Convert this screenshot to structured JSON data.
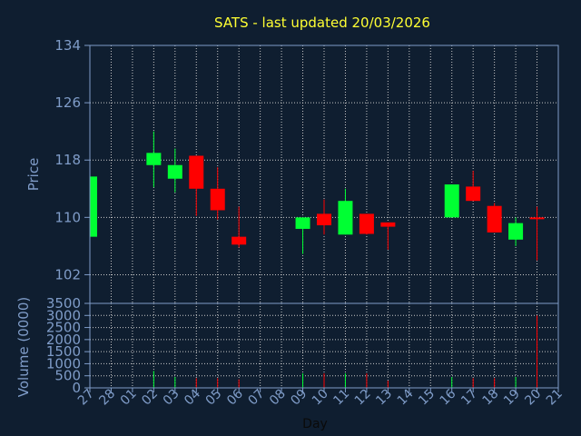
{
  "chart_data": {
    "type": "candlestick",
    "title": "SATS - last updated 20/03/2026",
    "colors": {
      "background": "#0f1e30",
      "axis": "#7f9cc8",
      "grid": "#c8c8c8",
      "title": "#ffff33",
      "up": "#00ff33",
      "down": "#ff0000"
    },
    "price_panel": {
      "ylabel": "Price",
      "ylim": [
        98,
        134
      ],
      "yticks": [
        102,
        110,
        118,
        126,
        134
      ]
    },
    "volume_panel": {
      "ylabel": "Volume (0000)",
      "ylim": [
        0,
        3500
      ],
      "yticks": [
        0,
        500,
        1000,
        1500,
        2000,
        2500,
        3000,
        3500
      ]
    },
    "xlabel": "Day",
    "x_ticks": [
      "27",
      "28",
      "01",
      "02",
      "03",
      "04",
      "05",
      "06",
      "07",
      "08",
      "09",
      "10",
      "11",
      "12",
      "13",
      "14",
      "15",
      "16",
      "17",
      "18",
      "19",
      "20",
      "21"
    ],
    "candles": [
      {
        "day": "27",
        "open": 107.3,
        "high": 115.7,
        "low": 107.3,
        "close": 115.7,
        "volume": 0
      },
      {
        "day": "02",
        "open": 117.3,
        "high": 122.0,
        "low": 114.2,
        "close": 119.0,
        "volume": 700
      },
      {
        "day": "03",
        "open": 115.4,
        "high": 119.6,
        "low": 113.5,
        "close": 117.3,
        "volume": 450
      },
      {
        "day": "04",
        "open": 118.6,
        "high": 118.6,
        "low": 110.2,
        "close": 114.0,
        "volume": 400
      },
      {
        "day": "05",
        "open": 114.0,
        "high": 117.0,
        "low": 109.7,
        "close": 111.0,
        "volume": 400
      },
      {
        "day": "06",
        "open": 107.3,
        "high": 111.5,
        "low": 105.8,
        "close": 106.2,
        "volume": 350
      },
      {
        "day": "09",
        "open": 108.4,
        "high": 110.0,
        "low": 104.9,
        "close": 110.0,
        "volume": 600
      },
      {
        "day": "10",
        "open": 110.5,
        "high": 112.5,
        "low": 107.6,
        "close": 108.9,
        "volume": 600
      },
      {
        "day": "11",
        "open": 107.6,
        "high": 114.0,
        "low": 107.6,
        "close": 112.3,
        "volume": 600
      },
      {
        "day": "12",
        "open": 110.5,
        "high": 110.5,
        "low": 107.6,
        "close": 107.7,
        "volume": 600
      },
      {
        "day": "13",
        "open": 109.3,
        "high": 109.3,
        "low": 105.5,
        "close": 108.7,
        "volume": 300
      },
      {
        "day": "16",
        "open": 110.0,
        "high": 114.6,
        "low": 110.0,
        "close": 114.6,
        "volume": 450
      },
      {
        "day": "17",
        "open": 114.3,
        "high": 116.5,
        "low": 112.3,
        "close": 112.3,
        "volume": 400
      },
      {
        "day": "18",
        "open": 111.6,
        "high": 112.0,
        "low": 107.9,
        "close": 107.9,
        "volume": 400
      },
      {
        "day": "19",
        "open": 106.9,
        "high": 110.0,
        "low": 106.0,
        "close": 109.2,
        "volume": 450
      },
      {
        "day": "20",
        "open": 110.0,
        "high": 111.5,
        "low": 104.0,
        "close": 109.8,
        "volume": 3000
      }
    ]
  }
}
